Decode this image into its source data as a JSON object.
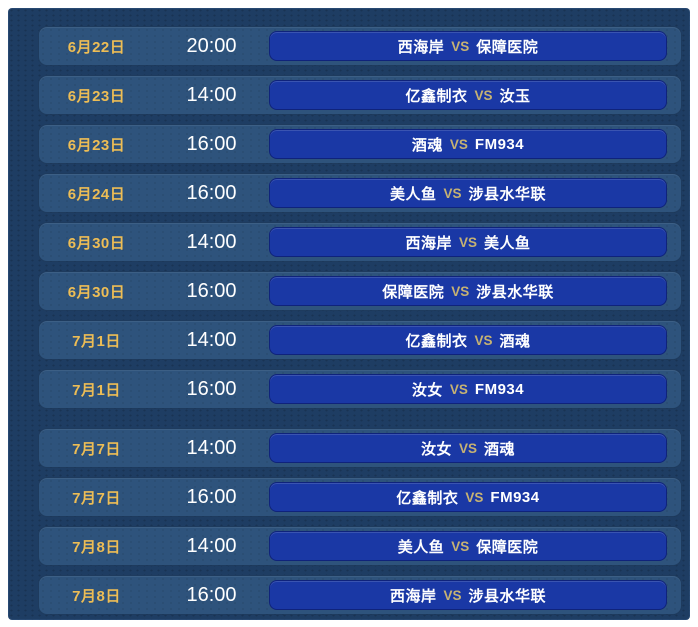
{
  "vs_label": "VS",
  "colors": {
    "panel_background": "#1e3d63",
    "row_background": "#2e537c",
    "match_background": "#1a38a5",
    "date_text": "#edbd55",
    "time_text": "#ffffff",
    "team_text": "#ffffff",
    "vs_text": "#c6b273"
  },
  "group_break_index": 8,
  "rows": [
    {
      "date": "6月22日",
      "time": "20:00",
      "home": "西海岸",
      "away": "保障医院"
    },
    {
      "date": "6月23日",
      "time": "14:00",
      "home": "亿鑫制衣",
      "away": "汝玉"
    },
    {
      "date": "6月23日",
      "time": "16:00",
      "home": "酒魂",
      "away": "FM934"
    },
    {
      "date": "6月24日",
      "time": "16:00",
      "home": "美人鱼",
      "away": "涉县水华联"
    },
    {
      "date": "6月30日",
      "time": "14:00",
      "home": "西海岸",
      "away": "美人鱼"
    },
    {
      "date": "6月30日",
      "time": "16:00",
      "home": "保障医院",
      "away": "涉县水华联"
    },
    {
      "date": "7月1日",
      "time": "14:00",
      "home": "亿鑫制衣",
      "away": "酒魂"
    },
    {
      "date": "7月1日",
      "time": "16:00",
      "home": "汝女",
      "away": "FM934"
    },
    {
      "date": "7月7日",
      "time": "14:00",
      "home": "汝女",
      "away": "酒魂"
    },
    {
      "date": "7月7日",
      "time": "16:00",
      "home": "亿鑫制衣",
      "away": "FM934"
    },
    {
      "date": "7月8日",
      "time": "14:00",
      "home": "美人鱼",
      "away": "保障医院"
    },
    {
      "date": "7月8日",
      "time": "16:00",
      "home": "西海岸",
      "away": "涉县水华联"
    }
  ]
}
